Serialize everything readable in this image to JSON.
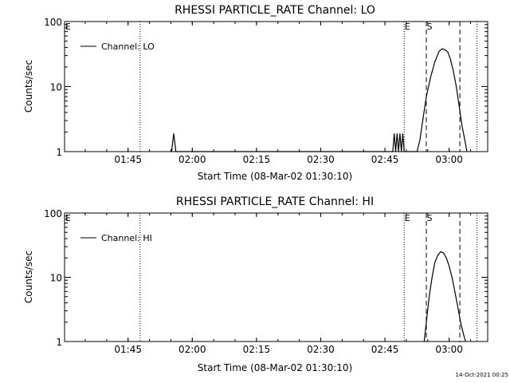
{
  "footer": {
    "timestamp": "14-Oct-2021 00:25"
  },
  "colors": {
    "foreground": "#000000",
    "background": "#ffffff"
  },
  "chart_data": [
    {
      "type": "line",
      "title": "RHESSI PARTICLE_RATE Channel: LO",
      "xlabel": "Start Time (08-Mar-02 01:30:10)",
      "ylabel": "Counts/sec",
      "x_ticks": [
        "01:45",
        "02:00",
        "02:15",
        "02:30",
        "02:45",
        "03:00"
      ],
      "y_ticks": [
        "1",
        "10",
        "100"
      ],
      "y_scale": "log",
      "ylim": [
        1,
        100
      ],
      "xlim": [
        "01:30:10",
        "03:09:00"
      ],
      "legend": {
        "label": "Channel: LO",
        "placement": "top-left"
      },
      "markers": [
        {
          "time": "01:47:50",
          "style": "dotted",
          "label": ""
        },
        {
          "time": "02:49:30",
          "style": "dotted",
          "label": "E"
        },
        {
          "time": "02:54:40",
          "style": "dashed",
          "label": "S"
        },
        {
          "time": "03:02:30",
          "style": "dashed",
          "label": ""
        },
        {
          "time": "03:06:30",
          "style": "dotted",
          "label": ""
        }
      ],
      "series": [
        {
          "name": "Channel: LO",
          "points": [
            [
              "01:55:10",
              1
            ],
            [
              "01:55:40",
              1.9
            ],
            [
              "01:56:10",
              1
            ],
            [
              "02:46:50",
              1
            ],
            [
              "02:47:10",
              1.9
            ],
            [
              "02:47:30",
              1
            ],
            [
              "02:47:50",
              1.9
            ],
            [
              "02:48:10",
              1
            ],
            [
              "02:48:30",
              1.9
            ],
            [
              "02:48:50",
              1
            ],
            [
              "02:49:10",
              1.9
            ],
            [
              "02:49:30",
              1
            ],
            [
              "02:52:30",
              1
            ],
            [
              "02:53:10",
              1.5
            ],
            [
              "02:53:50",
              3
            ],
            [
              "02:54:40",
              7
            ],
            [
              "02:55:40",
              14
            ],
            [
              "02:56:40",
              24
            ],
            [
              "02:57:40",
              35
            ],
            [
              "02:58:20",
              38
            ],
            [
              "02:59:00",
              37
            ],
            [
              "02:59:40",
              34
            ],
            [
              "03:00:20",
              26
            ],
            [
              "03:01:00",
              17
            ],
            [
              "03:01:40",
              10
            ],
            [
              "03:02:20",
              5
            ],
            [
              "03:03:00",
              2.5
            ],
            [
              "03:03:40",
              1.5
            ],
            [
              "03:04:10",
              1
            ]
          ]
        }
      ]
    },
    {
      "type": "line",
      "title": "RHESSI PARTICLE_RATE Channel: HI",
      "xlabel": "Start Time (08-Mar-02 01:30:10)",
      "ylabel": "Counts/sec",
      "x_ticks": [
        "01:45",
        "02:00",
        "02:15",
        "02:30",
        "02:45",
        "03:00"
      ],
      "y_ticks": [
        "1",
        "10",
        "100"
      ],
      "y_scale": "log",
      "ylim": [
        1,
        100
      ],
      "xlim": [
        "01:30:10",
        "03:09:00"
      ],
      "legend": {
        "label": "Channel: HI",
        "placement": "top-left"
      },
      "markers": [
        {
          "time": "01:47:50",
          "style": "dotted",
          "label": ""
        },
        {
          "time": "02:49:30",
          "style": "dotted",
          "label": "E"
        },
        {
          "time": "02:54:40",
          "style": "dashed",
          "label": "S"
        },
        {
          "time": "03:02:30",
          "style": "dashed",
          "label": ""
        },
        {
          "time": "03:06:30",
          "style": "dotted",
          "label": ""
        }
      ],
      "series": [
        {
          "name": "Channel: HI",
          "points": [
            [
              "02:54:10",
              1
            ],
            [
              "02:54:40",
              2
            ],
            [
              "02:55:20",
              5
            ],
            [
              "02:56:00",
              10
            ],
            [
              "02:56:40",
              17
            ],
            [
              "02:57:20",
              22
            ],
            [
              "02:58:00",
              25
            ],
            [
              "02:58:40",
              24
            ],
            [
              "02:59:20",
              20
            ],
            [
              "03:00:00",
              15
            ],
            [
              "03:00:40",
              10
            ],
            [
              "03:01:20",
              6
            ],
            [
              "03:02:00",
              3.5
            ],
            [
              "03:02:40",
              2
            ],
            [
              "03:03:20",
              1.3
            ],
            [
              "03:03:50",
              1
            ]
          ]
        }
      ]
    }
  ]
}
